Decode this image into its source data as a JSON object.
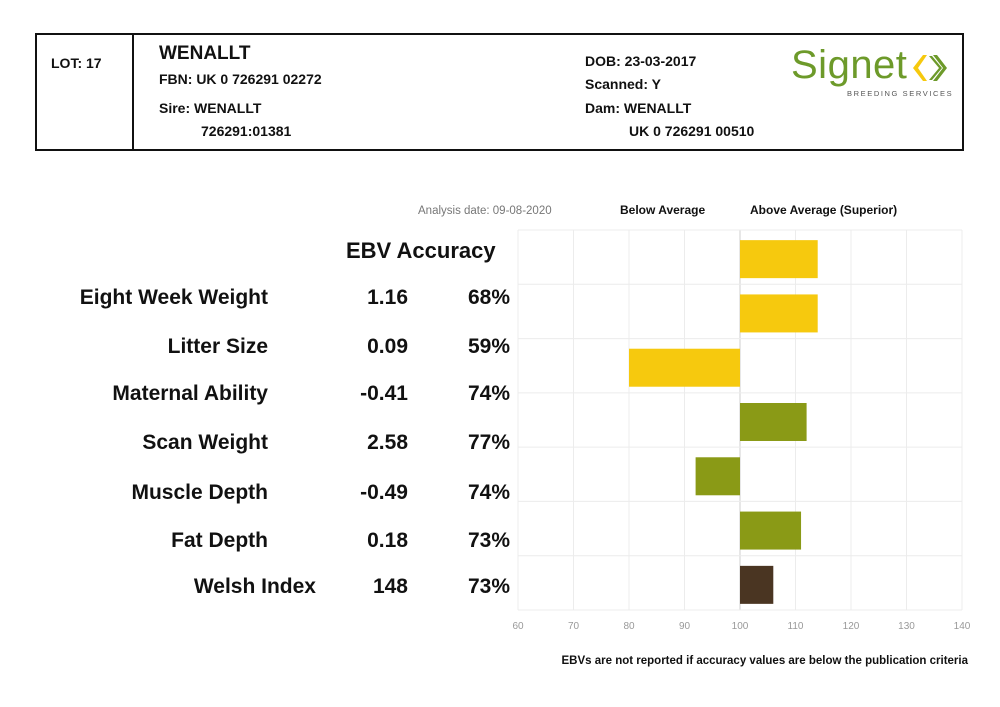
{
  "header": {
    "lot": "LOT: 17",
    "name": "WENALLT",
    "fbn": "FBN: UK 0 726291 02272",
    "sire_label": "Sire: WENALLT",
    "sire_id": "726291:01381",
    "dob": "DOB: 23-03-2017",
    "scanned": "Scanned: Y",
    "dam_label": "Dam: WENALLT",
    "dam_id": "UK 0 726291 00510",
    "logo": {
      "word": "Signet",
      "sub": "BREEDING SERVICES",
      "color": "#6d9a2a"
    }
  },
  "table": {
    "analysis_date": "Analysis date: 09-08-2020",
    "below_label": "Below Average",
    "above_label": "Above Average (Superior)",
    "column_header": "EBV Accuracy",
    "rows": [
      {
        "trait": "Eight Week Weight",
        "ebv": "1.16",
        "accuracy": "68%"
      },
      {
        "trait": "Litter Size",
        "ebv": "0.09",
        "accuracy": "59%"
      },
      {
        "trait": "Maternal Ability",
        "ebv": "-0.41",
        "accuracy": "74%"
      },
      {
        "trait": "Scan Weight",
        "ebv": "2.58",
        "accuracy": "77%"
      },
      {
        "trait": "Muscle Depth",
        "ebv": "-0.49",
        "accuracy": "74%"
      },
      {
        "trait": "Fat Depth",
        "ebv": "0.18",
        "accuracy": "73%"
      },
      {
        "trait": "Welsh Index",
        "ebv": "148",
        "accuracy": "73%"
      }
    ]
  },
  "chart_data": {
    "type": "bar",
    "orientation": "horizontal",
    "baseline": 100,
    "xlim": [
      60,
      140
    ],
    "xticks": [
      60,
      70,
      80,
      90,
      100,
      110,
      120,
      130,
      140
    ],
    "grid": true,
    "categories": [
      "Eight Week Weight",
      "Litter Size",
      "Maternal Ability",
      "Scan Weight",
      "Muscle Depth",
      "Fat Depth",
      "Welsh Index"
    ],
    "values": [
      114,
      114,
      80,
      112,
      92,
      111,
      106
    ],
    "colors": [
      "#f6c90e",
      "#f6c90e",
      "#f6c90e",
      "#8a9a16",
      "#8a9a16",
      "#8a9a16",
      "#4a3522"
    ]
  },
  "footnote": "EBVs are not reported if accuracy values are below the publication criteria"
}
